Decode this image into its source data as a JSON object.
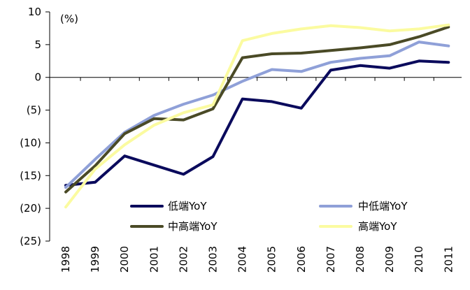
{
  "chart_data": {
    "type": "line",
    "y_unit_label": "(%)",
    "x": [
      "1998",
      "1999",
      "2000",
      "2001",
      "2002",
      "2003",
      "2004",
      "2005",
      "2006",
      "2007",
      "2008",
      "2009",
      "2010",
      "2011"
    ],
    "ylim": [
      -25,
      10
    ],
    "y_ticks": [
      10,
      5,
      0,
      -5,
      -10,
      -15,
      -20,
      -25
    ],
    "y_tick_labels": [
      "10",
      "5",
      "0",
      "(5)",
      "(10)",
      "(15)",
      "(20)",
      "(25)"
    ],
    "grid": false,
    "legend_placement": "bottom-right, inside plot, two columns",
    "series": [
      {
        "name": "低端YoY",
        "color": "#0a0a5c",
        "values": [
          -16.5,
          -16.0,
          -12.0,
          -13.4,
          -14.8,
          -12.1,
          -3.3,
          -3.7,
          -4.7,
          1.1,
          1.8,
          1.4,
          2.5,
          2.3
        ]
      },
      {
        "name": "中低端YoY",
        "color": "#8fa0d8",
        "values": [
          -16.8,
          -12.5,
          -8.4,
          -5.8,
          -4.1,
          -2.7,
          -0.6,
          1.2,
          0.9,
          2.3,
          2.9,
          3.3,
          5.4,
          4.8
        ]
      },
      {
        "name": "中高端YoY",
        "color": "#4a4a26",
        "values": [
          -17.5,
          -13.5,
          -8.6,
          -6.3,
          -6.5,
          -4.8,
          3.0,
          3.6,
          3.7,
          4.1,
          4.5,
          5.0,
          6.2,
          7.7
        ]
      },
      {
        "name": "高端YoY",
        "color": "#fbfba0",
        "values": [
          -19.8,
          -14.0,
          -10.3,
          -7.3,
          -5.4,
          -4.2,
          5.6,
          6.7,
          7.4,
          7.9,
          7.6,
          7.1,
          7.4,
          8.0
        ]
      }
    ],
    "legend_order": [
      0,
      1,
      2,
      3
    ]
  }
}
